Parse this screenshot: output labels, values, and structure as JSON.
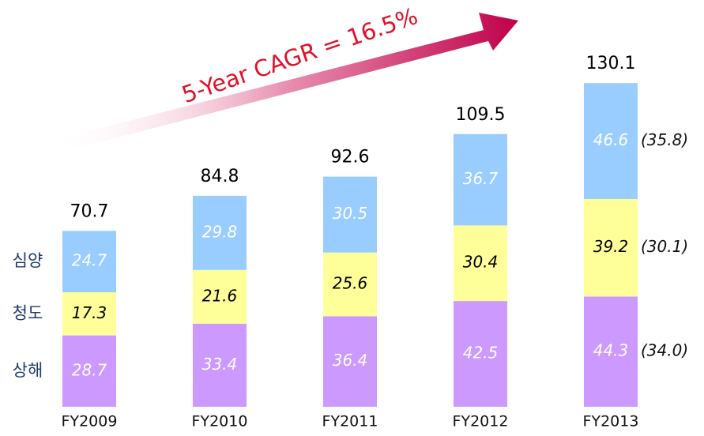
{
  "chart_data": {
    "type": "stacked_bar",
    "annotation": "5-Year CAGR = 16.5%",
    "categories": [
      "FY2009",
      "FY2010",
      "FY2011",
      "FY2012",
      "FY2013"
    ],
    "totals": [
      70.7,
      84.8,
      92.6,
      109.5,
      130.1
    ],
    "series": [
      {
        "name": "상해",
        "color": "#cc99ff",
        "label_color": "#ffffff",
        "values": [
          28.7,
          33.4,
          36.4,
          42.5,
          44.3
        ],
        "share": 34.0,
        "share_label": "(34.0)"
      },
      {
        "name": "청도",
        "color": "#ffff99",
        "label_color": "#000000",
        "values": [
          17.3,
          21.6,
          25.6,
          30.4,
          39.2
        ],
        "share": 30.1,
        "share_label": "(30.1)"
      },
      {
        "name": "심양",
        "color": "#99ccff",
        "label_color": "#ffffff",
        "values": [
          24.7,
          29.8,
          30.5,
          36.7,
          46.6
        ],
        "share": 35.8,
        "share_label": "(35.8)"
      }
    ]
  }
}
